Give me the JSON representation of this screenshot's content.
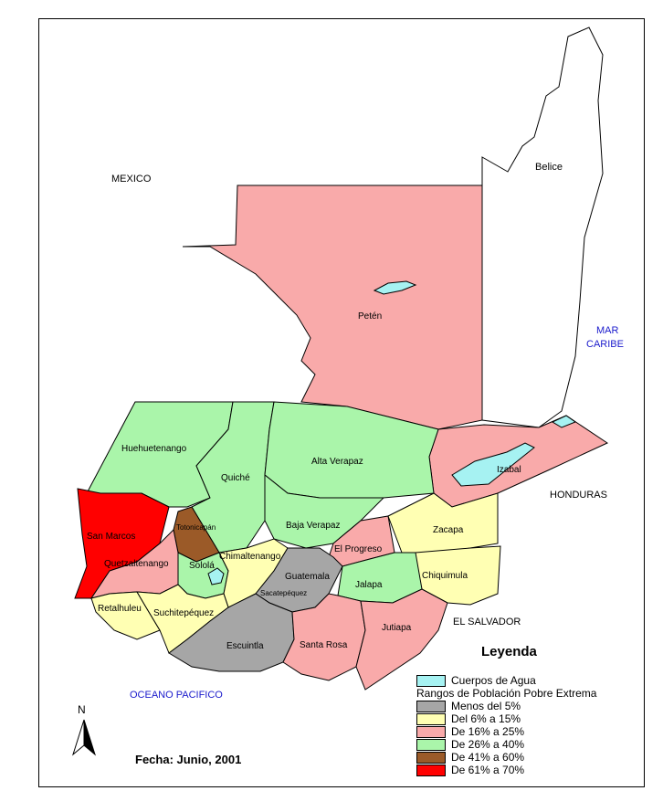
{
  "countries": {
    "mexico": "MEXICO",
    "belice": "Belice",
    "honduras": "HONDURAS",
    "el_salvador": "EL SALVADOR"
  },
  "seas": {
    "caribe_line1": "MAR",
    "caribe_line2": "CARIBE",
    "pacifico": "OCEANO PACIFICO"
  },
  "departments": {
    "peten": "Petén",
    "huehuetenango": "Huehuetenango",
    "quiche": "Quiché",
    "alta_verapaz": "Alta Verapaz",
    "izabal": "Izabal",
    "baja_verapaz": "Baja Verapaz",
    "zacapa": "Zacapa",
    "el_progreso": "El Progreso",
    "chiquimula": "Chiquimula",
    "san_marcos": "San Marcos",
    "totonicapan": "Totonicapán",
    "quetzaltenango": "Quetzaltenango",
    "solola": "Sololá",
    "chimaltenango": "Chimaltenango",
    "guatemala": "Guatemala",
    "sacatepequez": "Sacatepéquez",
    "jalapa": "Jalapa",
    "retalhuleu": "Retalhuleu",
    "suchitepequez": "Suchitepéquez",
    "escuintla": "Escuintla",
    "santa_rosa": "Santa Rosa",
    "jutiapa": "Jutiapa"
  },
  "legend": {
    "title": "Leyenda",
    "water": {
      "label": "Cuerpos de Agua",
      "color": "#a6f2f2"
    },
    "ranges_title": "Rangos de Población Pobre Extrema",
    "items": [
      {
        "label": "Menos del 5%",
        "color": "#a6a6a6"
      },
      {
        "label": "Del 6% a 15%",
        "color": "#ffffb3"
      },
      {
        "label": "De 16% a 25%",
        "color": "#f9aaaa"
      },
      {
        "label": "De 26% a 40%",
        "color": "#aaf5aa"
      },
      {
        "label": "De 41% a 60%",
        "color": "#9b5a28"
      },
      {
        "label": "De 61% a 70%",
        "color": "#ff0000"
      }
    ]
  },
  "north_arrow": "N",
  "date": "Fecha: Junio, 2001"
}
